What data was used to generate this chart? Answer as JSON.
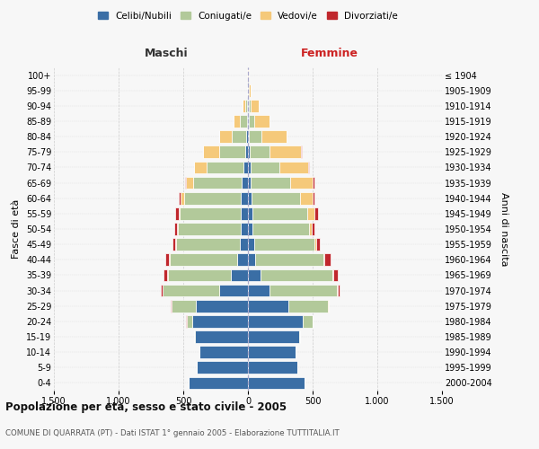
{
  "age_groups": [
    "0-4",
    "5-9",
    "10-14",
    "15-19",
    "20-24",
    "25-29",
    "30-34",
    "35-39",
    "40-44",
    "45-49",
    "50-54",
    "55-59",
    "60-64",
    "65-69",
    "70-74",
    "75-79",
    "80-84",
    "85-89",
    "90-94",
    "95-99",
    "100+"
  ],
  "birth_years": [
    "2000-2004",
    "1995-1999",
    "1990-1994",
    "1985-1989",
    "1980-1984",
    "1975-1979",
    "1970-1974",
    "1965-1969",
    "1960-1964",
    "1955-1959",
    "1950-1954",
    "1945-1949",
    "1940-1944",
    "1935-1939",
    "1930-1934",
    "1925-1929",
    "1920-1924",
    "1915-1919",
    "1910-1914",
    "1905-1909",
    "≤ 1904"
  ],
  "colors": {
    "celibi": "#3a6ea5",
    "coniugati": "#b2c99a",
    "vedovi": "#f5c97a",
    "divorziati": "#c0272d"
  },
  "males": {
    "celibi": [
      455,
      395,
      375,
      410,
      430,
      400,
      220,
      130,
      85,
      65,
      55,
      55,
      55,
      50,
      35,
      20,
      12,
      7,
      4,
      2,
      1
    ],
    "coniugati": [
      0,
      0,
      0,
      4,
      45,
      190,
      440,
      490,
      520,
      490,
      485,
      470,
      435,
      375,
      285,
      200,
      115,
      55,
      18,
      4,
      2
    ],
    "vedovi": [
      0,
      0,
      0,
      0,
      0,
      1,
      1,
      2,
      4,
      6,
      8,
      13,
      28,
      55,
      95,
      125,
      95,
      48,
      18,
      4,
      1
    ],
    "divorziati": [
      0,
      0,
      0,
      0,
      1,
      4,
      13,
      32,
      32,
      22,
      18,
      23,
      14,
      9,
      4,
      3,
      2,
      1,
      0,
      0,
      0
    ]
  },
  "females": {
    "nubili": [
      435,
      385,
      365,
      395,
      425,
      315,
      165,
      98,
      58,
      48,
      38,
      32,
      28,
      22,
      18,
      12,
      8,
      6,
      4,
      2,
      1
    ],
    "coniugate": [
      0,
      0,
      0,
      8,
      75,
      305,
      525,
      555,
      525,
      465,
      435,
      425,
      375,
      305,
      225,
      155,
      95,
      45,
      18,
      4,
      1
    ],
    "vedove": [
      0,
      0,
      0,
      0,
      1,
      2,
      2,
      4,
      8,
      12,
      22,
      55,
      95,
      175,
      225,
      245,
      195,
      115,
      58,
      14,
      4
    ],
    "divorziate": [
      0,
      0,
      0,
      0,
      1,
      4,
      18,
      38,
      48,
      32,
      22,
      28,
      16,
      9,
      4,
      3,
      2,
      1,
      0,
      0,
      0
    ]
  },
  "title": "Popolazione per età, sesso e stato civile - 2005",
  "subtitle": "COMUNE DI QUARRATA (PT) - Dati ISTAT 1° gennaio 2005 - Elaborazione TUTTITALIA.IT",
  "label_maschi": "Maschi",
  "label_femmine": "Femmine",
  "ylabel_left": "Fasce di età",
  "ylabel_right": "Anni di nascita",
  "xlim": 1500,
  "legend_labels": [
    "Celibi/Nubili",
    "Coniugati/e",
    "Vedovi/e",
    "Divorziati/e"
  ],
  "bg_color": "#f7f7f7",
  "edge_color": "white"
}
